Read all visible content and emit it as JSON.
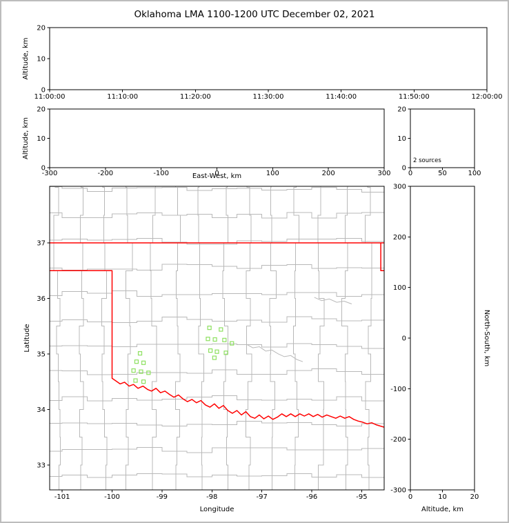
{
  "title": "Oklahoma LMA 1100-1200 UTC December 02, 2021",
  "colors": {
    "background": "#ffffff",
    "figure_border": "#bcbcbc",
    "axis": "#000000",
    "text": "#000000",
    "county_lines": "#b8b8b8",
    "state_border": "#ff0000",
    "station_marker": "#8de05f"
  },
  "chart_data": {
    "type": "scatter",
    "title": "Oklahoma LMA 1100-1200 UTC December 02, 2021",
    "panels": {
      "time_height": {
        "ylabel": "Altitude, km",
        "xlim": [
          0,
          3600
        ],
        "ylim": [
          0,
          20
        ],
        "xtick_values": [
          0,
          600,
          1200,
          1800,
          2400,
          3000,
          3600
        ],
        "xtick_labels": [
          "11:00:00",
          "11:10:00",
          "11:20:00",
          "11:30:00",
          "11:40:00",
          "11:50:00",
          "12:00:00"
        ],
        "ytick_values": [
          0,
          10,
          20
        ],
        "points": []
      },
      "ew_height": {
        "xlabel": "East-West, km",
        "ylabel": "Altitude, km",
        "xlim": [
          -300,
          300
        ],
        "ylim": [
          0,
          20
        ],
        "xtick_values": [
          -300,
          -200,
          -100,
          0,
          100,
          200,
          300
        ],
        "ytick_values": [
          0,
          10,
          20
        ],
        "points": []
      },
      "alt_histogram": {
        "annotation": "2 sources",
        "xlim": [
          0,
          100
        ],
        "ylim": [
          0,
          20
        ],
        "xtick_values": [
          0,
          50,
          100
        ],
        "ytick_values": [
          0,
          10,
          20
        ],
        "points": []
      },
      "plan_view": {
        "xlabel": "Longitude",
        "ylabel": "Latitude",
        "xlim": [
          -101.25,
          -94.55
        ],
        "ylim": [
          32.55,
          38.02
        ],
        "xtick_values": [
          -101,
          -100,
          -99,
          -98,
          -97,
          -96,
          -95
        ],
        "ytick_values": [
          33,
          34,
          35,
          36,
          37
        ],
        "points": []
      },
      "ns_height": {
        "xlabel": "Altitude, km",
        "ylabel": "North-South, km",
        "xlim": [
          0,
          20
        ],
        "ylim": [
          -300,
          300
        ],
        "xtick_values": [
          0,
          10,
          20
        ],
        "ytick_values": [
          -300,
          -200,
          -100,
          0,
          100,
          200,
          300
        ],
        "points": []
      }
    },
    "lma_stations_lon_lat": [
      [
        -98.05,
        35.47
      ],
      [
        -97.82,
        35.44
      ],
      [
        -98.08,
        35.27
      ],
      [
        -97.94,
        35.26
      ],
      [
        -97.75,
        35.25
      ],
      [
        -97.6,
        35.19
      ],
      [
        -98.03,
        35.06
      ],
      [
        -97.9,
        35.04
      ],
      [
        -97.72,
        35.02
      ],
      [
        -97.95,
        34.93
      ],
      [
        -99.44,
        35.01
      ],
      [
        -99.51,
        34.86
      ],
      [
        -99.37,
        34.84
      ],
      [
        -99.57,
        34.7
      ],
      [
        -99.42,
        34.68
      ],
      [
        -99.27,
        34.66
      ],
      [
        -99.53,
        34.52
      ],
      [
        -99.37,
        34.5
      ]
    ],
    "state_borders": [
      {
        "name": "oklahoma-kansas",
        "points": [
          [
            -101.25,
            37.0
          ],
          [
            -94.55,
            37.0
          ]
        ]
      },
      {
        "name": "oklahoma-missouri",
        "points": [
          [
            -94.618,
            37.0
          ],
          [
            -94.618,
            36.5
          ],
          [
            -94.55,
            36.5
          ]
        ]
      },
      {
        "name": "oklahoma-texas-red-river",
        "points": [
          [
            -101.25,
            36.5
          ],
          [
            -100.0,
            36.5
          ],
          [
            -100.0,
            34.56
          ],
          [
            -99.92,
            34.51
          ],
          [
            -99.84,
            34.46
          ],
          [
            -99.75,
            34.49
          ],
          [
            -99.66,
            34.42
          ],
          [
            -99.57,
            34.45
          ],
          [
            -99.48,
            34.38
          ],
          [
            -99.38,
            34.42
          ],
          [
            -99.29,
            34.36
          ],
          [
            -99.21,
            34.33
          ],
          [
            -99.12,
            34.38
          ],
          [
            -99.03,
            34.3
          ],
          [
            -98.94,
            34.33
          ],
          [
            -98.85,
            34.27
          ],
          [
            -98.76,
            34.22
          ],
          [
            -98.67,
            34.26
          ],
          [
            -98.58,
            34.19
          ],
          [
            -98.49,
            34.14
          ],
          [
            -98.4,
            34.18
          ],
          [
            -98.31,
            34.12
          ],
          [
            -98.22,
            34.16
          ],
          [
            -98.13,
            34.08
          ],
          [
            -98.04,
            34.04
          ],
          [
            -97.95,
            34.1
          ],
          [
            -97.86,
            34.02
          ],
          [
            -97.77,
            34.07
          ],
          [
            -97.68,
            33.98
          ],
          [
            -97.59,
            33.93
          ],
          [
            -97.5,
            33.98
          ],
          [
            -97.41,
            33.9
          ],
          [
            -97.32,
            33.96
          ],
          [
            -97.23,
            33.87
          ],
          [
            -97.14,
            33.84
          ],
          [
            -97.05,
            33.9
          ],
          [
            -96.96,
            33.83
          ],
          [
            -96.87,
            33.88
          ],
          [
            -96.78,
            33.82
          ],
          [
            -96.69,
            33.86
          ],
          [
            -96.6,
            33.92
          ],
          [
            -96.51,
            33.87
          ],
          [
            -96.42,
            33.92
          ],
          [
            -96.33,
            33.87
          ],
          [
            -96.24,
            33.92
          ],
          [
            -96.15,
            33.88
          ],
          [
            -96.06,
            33.92
          ],
          [
            -95.97,
            33.87
          ],
          [
            -95.88,
            33.91
          ],
          [
            -95.79,
            33.86
          ],
          [
            -95.7,
            33.9
          ],
          [
            -95.61,
            33.87
          ],
          [
            -95.52,
            33.84
          ],
          [
            -95.43,
            33.88
          ],
          [
            -95.34,
            33.84
          ],
          [
            -95.25,
            33.87
          ],
          [
            -95.16,
            33.82
          ],
          [
            -95.07,
            33.79
          ],
          [
            -94.98,
            33.77
          ],
          [
            -94.89,
            33.74
          ],
          [
            -94.8,
            33.76
          ],
          [
            -94.7,
            33.72
          ],
          [
            -94.55,
            33.68
          ]
        ]
      }
    ],
    "county_river_curves": [
      [
        [
          -97.3,
          35.17
        ],
        [
          -97.18,
          35.11
        ],
        [
          -97.05,
          35.13
        ],
        [
          -96.92,
          35.05
        ],
        [
          -96.8,
          35.07
        ],
        [
          -96.67,
          35.0
        ],
        [
          -96.55,
          34.95
        ],
        [
          -96.42,
          34.97
        ],
        [
          -96.3,
          34.9
        ],
        [
          -96.18,
          34.86
        ]
      ],
      [
        [
          -95.95,
          36.02
        ],
        [
          -95.8,
          35.96
        ],
        [
          -95.65,
          35.99
        ],
        [
          -95.5,
          35.93
        ],
        [
          -95.35,
          35.95
        ],
        [
          -95.2,
          35.9
        ]
      ]
    ],
    "county_grid_approx": {
      "lon_start": -101.1,
      "lon_step": 0.48,
      "lat_start": 32.8,
      "lat_step": 0.47,
      "jitter_deg": 0.14
    }
  }
}
